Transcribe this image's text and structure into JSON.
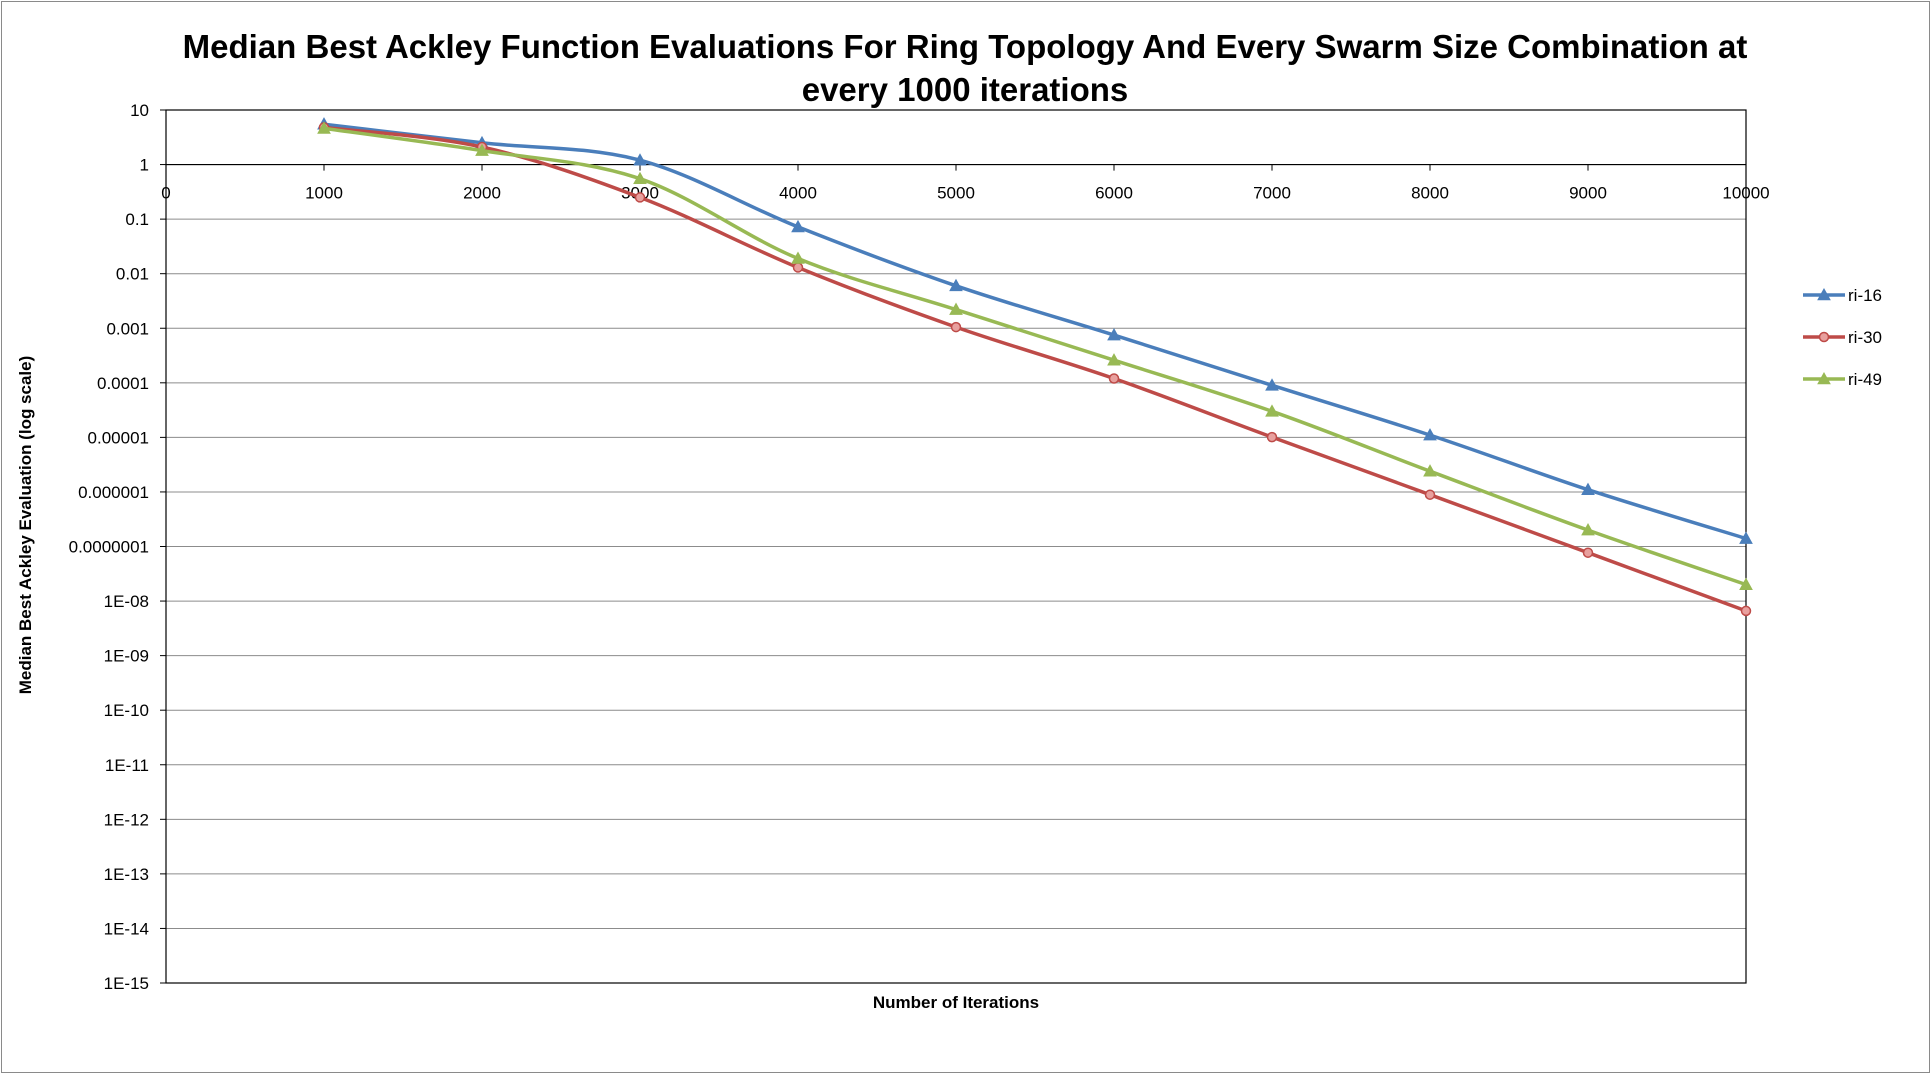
{
  "chart_data": {
    "type": "line",
    "title_lines": [
      "Median Best Ackley Function Evaluations For Ring Topology And Every Swarm Size Combination at",
      "every 1000 iterations"
    ],
    "xlabel": "Number of Iterations",
    "ylabel": "Median Best Ackley Evaluation (log scale)",
    "y_scale": "log",
    "ylim": [
      1e-15,
      10
    ],
    "y_tick_labels": [
      "10",
      "1",
      "0.1",
      "0.01",
      "0.001",
      "0.0001",
      "0.00001",
      "0.000001",
      "0.0000001",
      "1E-08",
      "1E-09",
      "1E-10",
      "1E-11",
      "1E-12",
      "1E-13",
      "1E-14",
      "1E-15"
    ],
    "x_tick_labels": [
      "0",
      "1000",
      "2000",
      "3000",
      "4000",
      "5000",
      "6000",
      "7000",
      "8000",
      "9000",
      "10000"
    ],
    "xlim": [
      0,
      10000
    ],
    "grid": "horizontal",
    "legend_position": "right",
    "x": [
      1000,
      2000,
      3000,
      4000,
      5000,
      6000,
      7000,
      8000,
      9000,
      10000
    ],
    "series": [
      {
        "name": "ri-16",
        "color": "#4a7ebb",
        "marker": "triangle",
        "values": [
          5.5,
          2.5,
          1.2,
          0.072,
          0.006,
          0.00075,
          9e-05,
          1.1e-05,
          1.1e-06,
          1.4e-07
        ]
      },
      {
        "name": "ri-30",
        "color": "#be4b48",
        "marker": "circle",
        "values": [
          4.8,
          2.1,
          0.25,
          0.013,
          0.00105,
          0.00012,
          1.01e-05,
          8.9e-07,
          7.7e-08,
          6.6e-09
        ]
      },
      {
        "name": "ri-49",
        "color": "#98b954",
        "marker": "triangle",
        "values": [
          4.6,
          1.8,
          0.55,
          0.019,
          0.0022,
          0.00026,
          3e-05,
          2.4e-06,
          2e-07,
          2e-08
        ]
      }
    ]
  }
}
